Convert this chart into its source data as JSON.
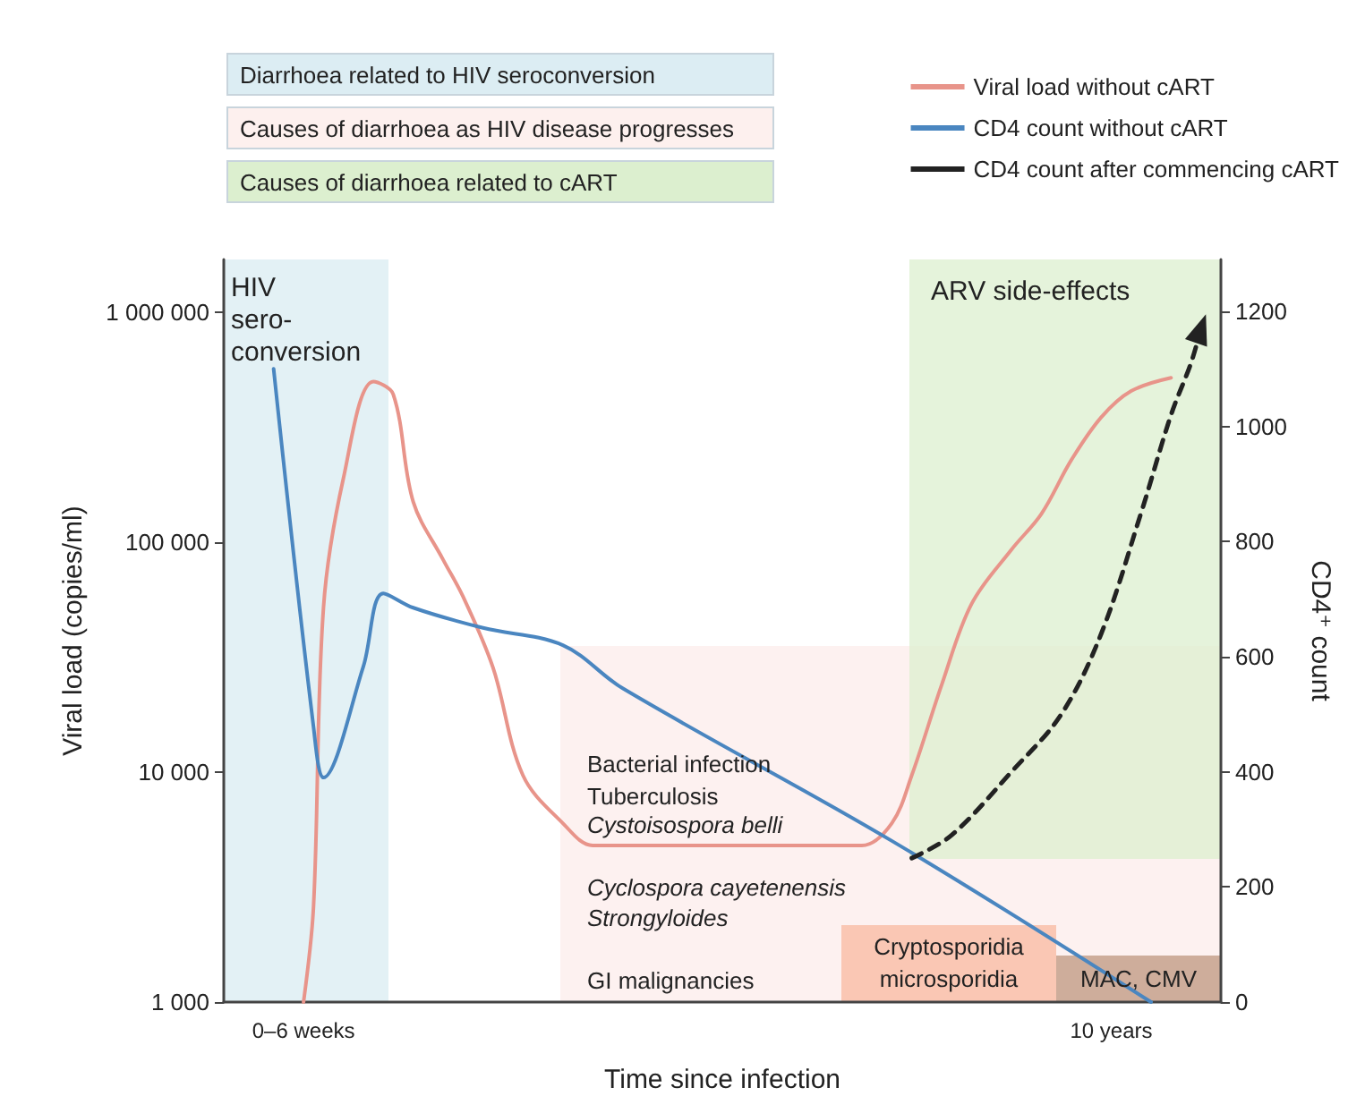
{
  "chart_data": {
    "type": "line",
    "xlabel": "Time since infection",
    "ylabel": "Viral load (copies/ml)",
    "y2label": "CD4⁺ count",
    "categories": [
      null,
      null,
      null,
      null,
      null,
      null,
      null,
      null,
      "0–6 weeks",
      null,
      null,
      null,
      null,
      null,
      null,
      null,
      null,
      null,
      null,
      null,
      null,
      null,
      null,
      null,
      null,
      null,
      null,
      null,
      null,
      null,
      null,
      null,
      null,
      null,
      null,
      null,
      null,
      null,
      null,
      null,
      null,
      null,
      null,
      null,
      null,
      null,
      null,
      null,
      null,
      null,
      null,
      null,
      null,
      null,
      null,
      null,
      null,
      null,
      null,
      null,
      null,
      null,
      null,
      null,
      null,
      null,
      null,
      null,
      null,
      null,
      null,
      null,
      null,
      null,
      null,
      null,
      null,
      null,
      null,
      null,
      null,
      null,
      null,
      null,
      null,
      null,
      null,
      null,
      null,
      "10 years",
      null,
      null,
      null,
      null,
      null,
      null,
      null,
      null,
      null,
      null,
      null
    ],
    "ylim": [
      1000,
      1700000
    ],
    "yticks": [
      {
        "value": 1000,
        "label": "1 000"
      },
      {
        "value": 10000,
        "label": "10 000"
      },
      {
        "value": 100000,
        "label": "100 000"
      },
      {
        "value": 1000000,
        "label": "1 000 000"
      }
    ],
    "y2lim": [
      0,
      1290
    ],
    "y2ticks": [
      0,
      200,
      400,
      600,
      800,
      1000,
      1200
    ],
    "log": "y",
    "grid": false,
    "legend": "top right",
    "series": [
      {
        "name": "Viral load without cART",
        "color": "#e8948a",
        "values": [
          null,
          null,
          null,
          null,
          null,
          null,
          null,
          null,
          1000,
          2600,
          52000,
          null,
          190000,
          null,
          null,
          500000,
          null,
          440000,
          null,
          150000,
          null,
          null,
          84000,
          null,
          58000,
          null,
          null,
          28500,
          null,
          null,
          9700,
          null,
          null,
          null,
          6000,
          null,
          null,
          4800,
          null,
          null,
          4800,
          null,
          null,
          null,
          null,
          null,
          null,
          null,
          null,
          4800,
          null,
          null,
          null,
          null,
          null,
          null,
          null,
          null,
          null,
          null,
          null,
          null,
          null,
          null,
          4800,
          null,
          null,
          6000,
          null,
          9700,
          null,
          null,
          24000,
          null,
          null,
          54000,
          null,
          null,
          null,
          93000,
          null,
          null,
          133000,
          null,
          null,
          228000,
          null,
          null,
          350000,
          null,
          null,
          455000,
          null,
          null,
          null,
          520000,
          null,
          null,
          null,
          null,
          null
        ]
      },
      {
        "name": "CD4 count without cART",
        "color": "#4a86c0",
        "axis": "y2",
        "values": [
          null,
          null,
          null,
          null,
          null,
          1100,
          null,
          null,
          null,
          478,
          390,
          null,
          null,
          null,
          583,
          null,
          710,
          null,
          null,
          685,
          null,
          null,
          null,
          null,
          null,
          null,
          650,
          null,
          null,
          null,
          null,
          null,
          null,
          null,
          620,
          null,
          null,
          null,
          null,
          null,
          545,
          null,
          null,
          null,
          null,
          null,
          null,
          null,
          null,
          null,
          null,
          null,
          null,
          null,
          null,
          null,
          null,
          null,
          null,
          null,
          null,
          null,
          null,
          null,
          null,
          null,
          null,
          280,
          null,
          null,
          null,
          null,
          null,
          null,
          null,
          null,
          null,
          null,
          null,
          null,
          null,
          null,
          null,
          null,
          null,
          null,
          null,
          null,
          null,
          null,
          null,
          null,
          null,
          0,
          null,
          null,
          null,
          null,
          null,
          null,
          null
        ]
      },
      {
        "name": "CD4 count after commencing cART",
        "color": "#222222",
        "axis": "y2",
        "line_style": "dashed",
        "values": [
          null,
          null,
          null,
          null,
          null,
          null,
          null,
          null,
          null,
          null,
          null,
          null,
          null,
          null,
          null,
          null,
          null,
          null,
          null,
          null,
          null,
          null,
          null,
          null,
          null,
          null,
          null,
          null,
          null,
          null,
          null,
          null,
          null,
          null,
          null,
          null,
          null,
          null,
          null,
          null,
          null,
          null,
          null,
          null,
          null,
          null,
          null,
          null,
          null,
          null,
          null,
          null,
          null,
          null,
          null,
          null,
          null,
          null,
          null,
          null,
          null,
          null,
          null,
          null,
          null,
          null,
          null,
          null,
          null,
          250,
          null,
          null,
          null,
          290,
          null,
          null,
          null,
          null,
          null,
          400,
          null,
          null,
          null,
          null,
          500,
          null,
          null,
          null,
          640,
          null,
          null,
          null,
          850,
          null,
          null,
          1020,
          null,
          1110,
          1170,
          null,
          null
        ]
      }
    ],
    "annotations": [
      "Diarrhoea related to HIV seroconversion",
      "Causes of diarrhoea as HIV disease progresses",
      "Causes of diarrhoea related to cART",
      "HIV\nsero-\nconversion",
      "ARV side-effects",
      "Bacterial infection",
      "Tuberculosis",
      "Cystoisospora belli",
      "Cyclospora cayetenensis",
      "Strongyloides",
      "GI malignancies",
      "Cryptosporidia\nmicrosporidia",
      "MAC, CMV"
    ]
  }
}
